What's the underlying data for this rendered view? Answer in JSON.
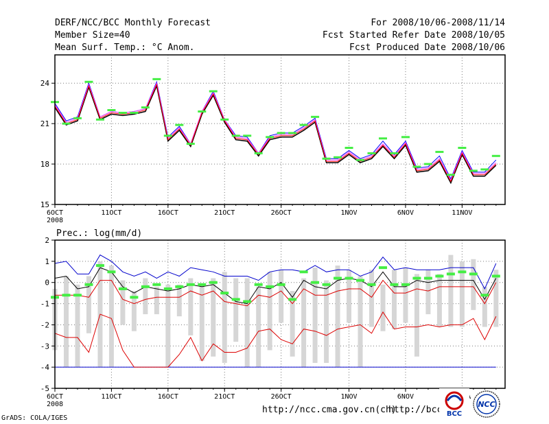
{
  "header": {
    "line1_left": "DERF/NCC/BCC Monthly Forecast",
    "line2_left": "Member Size=40",
    "line3_left": "Mean Surf. Temp.: °C Anom.",
    "line1_right": "For 2008/10/06-2008/11/14",
    "line2_right": "Fcst Started Refer Date 2008/10/05",
    "line3_right": "Fcst Produced Date 2008/10/06"
  },
  "footer": {
    "grads": "GrADS: COLA/IGES",
    "url1": "http://ncc.cma.gov.cn(ch)",
    "url2": "http://bcc.",
    "bcc_logo_text": "BCC",
    "ncc_logo_text": "NCC"
  },
  "colors": {
    "temp_black": "#000000",
    "temp_blue": "#0000ff",
    "temp_red": "#ff0000",
    "temp_pink": "#ff44ff",
    "marker_green": "#44ee44",
    "bar_gray": "#d6d6d6",
    "prec_blue": "#0000cc",
    "prec_red": "#dd0000",
    "grid": "#777777"
  },
  "chart_data": [
    {
      "type": "line",
      "title": "Mean Surf. Temp.: °C Anom.",
      "xlabel": "",
      "ylabel": "",
      "ylim": [
        15,
        26.1
      ],
      "yticks": [
        15,
        18,
        21,
        24
      ],
      "xlim": [
        0,
        39.8
      ],
      "xtick_positions": [
        0,
        5,
        10,
        15,
        20,
        26,
        31,
        36
      ],
      "xtick_labels": [
        "6OCT",
        "11OCT",
        "16OCT",
        "21OCT",
        "26OCT",
        "1NOV",
        "6NOV",
        "11NOV"
      ],
      "xtick_sublabel": "2008",
      "series": [
        {
          "name": "ensemble-mean-black",
          "values": [
            22.2,
            20.9,
            21.2,
            23.7,
            21.3,
            21.7,
            21.6,
            21.7,
            21.9,
            23.8,
            19.7,
            20.5,
            19.3,
            21.7,
            23.1,
            21.1,
            19.8,
            19.7,
            18.6,
            19.8,
            20.0,
            20.0,
            20.5,
            21.1,
            18.1,
            18.1,
            18.7,
            18.1,
            18.4,
            19.3,
            18.4,
            19.4,
            17.4,
            17.5,
            18.2,
            16.6,
            18.7,
            17.1,
            17.1,
            17.9
          ]
        },
        {
          "name": "upper-blue",
          "values": [
            22.5,
            21.2,
            21.5,
            24.0,
            21.5,
            21.9,
            21.8,
            21.9,
            22.1,
            24.1,
            20.0,
            20.8,
            19.5,
            21.9,
            23.4,
            21.3,
            20.1,
            20.0,
            18.8,
            20.1,
            20.3,
            20.3,
            20.8,
            21.4,
            18.4,
            18.4,
            19.0,
            18.4,
            18.7,
            19.7,
            18.7,
            19.7,
            17.7,
            17.8,
            18.6,
            16.9,
            19.0,
            17.4,
            17.4,
            18.3
          ]
        },
        {
          "name": "mid-red",
          "values": [
            22.3,
            21.0,
            21.3,
            23.8,
            21.4,
            21.8,
            21.7,
            21.8,
            22.0,
            23.9,
            19.8,
            20.6,
            19.4,
            21.8,
            23.2,
            21.2,
            19.9,
            19.8,
            18.7,
            19.9,
            20.1,
            20.1,
            20.6,
            21.2,
            18.2,
            18.2,
            18.8,
            18.2,
            18.5,
            19.4,
            18.5,
            19.5,
            17.5,
            17.6,
            18.3,
            16.7,
            18.8,
            17.2,
            17.2,
            18.0
          ]
        },
        {
          "name": "upper-pink",
          "values": [
            22.4,
            21.1,
            21.4,
            23.9,
            21.5,
            21.9,
            21.8,
            21.9,
            22.1,
            24.0,
            19.9,
            20.7,
            19.5,
            21.9,
            23.3,
            21.3,
            20.0,
            19.9,
            18.8,
            20.0,
            20.2,
            20.2,
            20.7,
            21.3,
            18.3,
            18.3,
            18.9,
            18.3,
            18.6,
            19.5,
            18.6,
            19.6,
            17.6,
            17.7,
            18.4,
            16.8,
            18.9,
            17.3,
            17.3,
            18.1
          ]
        }
      ],
      "markers": [
        22.6,
        21.0,
        21.4,
        24.1,
        21.3,
        22.0,
        21.8,
        21.8,
        22.2,
        24.3,
        20.1,
        20.9,
        19.5,
        21.9,
        23.4,
        21.3,
        20.1,
        20.1,
        18.8,
        20.0,
        20.3,
        20.3,
        20.9,
        21.5,
        18.4,
        18.5,
        19.2,
        18.3,
        18.8,
        19.9,
        18.8,
        20.0,
        17.8,
        18.0,
        18.9,
        17.2,
        19.2,
        17.5,
        17.6,
        18.6
      ]
    },
    {
      "type": "line",
      "title": "Prec.: log(mm/d)",
      "xlabel": "",
      "ylabel": "",
      "ylim": [
        -5,
        2
      ],
      "yticks": [
        -5,
        -4,
        -3,
        -2,
        -1,
        0,
        1,
        2
      ],
      "xlim": [
        0,
        39.8
      ],
      "xtick_positions": [
        0,
        5,
        10,
        15,
        20,
        26,
        31,
        36
      ],
      "xtick_labels": [
        "6OCT",
        "11OCT",
        "16OCT",
        "21OCT",
        "26OCT",
        "1NOV",
        "6NOV",
        "11NOV"
      ],
      "xtick_sublabel": "2008",
      "bars_low": [
        -3.2,
        -4.0,
        -4.0,
        -2.4,
        -4.0,
        -4.0,
        -2.0,
        -2.3,
        -1.5,
        -1.5,
        -4.0,
        -1.6,
        -2.5,
        -3.7,
        -3.5,
        -3.8,
        -2.8,
        -4.0,
        -4.0,
        -3.2,
        -1.9,
        -3.5,
        -4.0,
        -3.8,
        -3.8,
        -4.0,
        -1.9,
        -4.0,
        -2.1,
        -2.3,
        -2.2,
        -1.9,
        -3.5,
        -1.5,
        -2.1,
        -2.1,
        -2.1,
        -1.3,
        -2.1,
        -2.1
      ],
      "bars_high": [
        -0.3,
        0.3,
        -0.1,
        0.3,
        1.0,
        0.8,
        0.1,
        -0.4,
        0.2,
        -0.2,
        -0.1,
        -0.1,
        0.2,
        -0.1,
        0.2,
        0.5,
        0.2,
        0.2,
        -0.2,
        0.5,
        0.6,
        -0.4,
        0.2,
        0.7,
        0.1,
        0.8,
        0.6,
        0.3,
        0.6,
        -0.1,
        0.6,
        0.7,
        0.4,
        0.6,
        0.4,
        1.3,
        1.0,
        1.1,
        -0.2,
        0.6
      ],
      "markers": [
        -0.7,
        -0.6,
        -0.6,
        -0.1,
        0.8,
        0.5,
        -0.3,
        -0.7,
        -0.2,
        -0.1,
        -0.3,
        -0.2,
        -0.1,
        -0.1,
        0.0,
        -0.5,
        -0.8,
        -0.9,
        -0.1,
        -0.2,
        -0.1,
        -0.8,
        0.5,
        0.0,
        -0.1,
        0.2,
        0.2,
        0.1,
        -0.1,
        0.7,
        -0.1,
        -0.1,
        0.2,
        0.2,
        0.3,
        0.4,
        0.5,
        0.4,
        -0.6,
        0.3
      ],
      "series": [
        {
          "name": "upper-blue",
          "values": [
            0.9,
            1.0,
            0.4,
            0.4,
            1.3,
            1.0,
            0.5,
            0.3,
            0.5,
            0.2,
            0.5,
            0.3,
            0.7,
            0.6,
            0.5,
            0.3,
            0.3,
            0.3,
            0.1,
            0.5,
            0.6,
            0.6,
            0.5,
            0.8,
            0.5,
            0.6,
            0.6,
            0.3,
            0.5,
            1.2,
            0.6,
            0.7,
            0.6,
            0.6,
            0.6,
            0.7,
            0.7,
            0.7,
            -0.3,
            0.9
          ]
        },
        {
          "name": "mean-black",
          "values": [
            0.2,
            0.3,
            -0.3,
            -0.2,
            0.7,
            0.5,
            -0.2,
            -0.5,
            -0.2,
            -0.3,
            -0.4,
            -0.3,
            -0.1,
            -0.2,
            -0.1,
            -0.5,
            -0.9,
            -1.0,
            -0.2,
            -0.3,
            0.0,
            -0.7,
            0.1,
            -0.2,
            -0.3,
            0.1,
            0.2,
            0.1,
            -0.2,
            0.5,
            -0.2,
            -0.2,
            0.1,
            0.0,
            0.1,
            0.1,
            0.1,
            0.1,
            -0.8,
            0.2
          ]
        },
        {
          "name": "lower-red",
          "values": [
            -0.6,
            -0.6,
            -0.6,
            -0.7,
            0.1,
            0.1,
            -0.8,
            -1.0,
            -0.8,
            -0.7,
            -0.7,
            -0.7,
            -0.4,
            -0.6,
            -0.4,
            -0.9,
            -1.0,
            -1.1,
            -0.6,
            -0.7,
            -0.4,
            -1.0,
            -0.3,
            -0.6,
            -0.6,
            -0.4,
            -0.3,
            -0.3,
            -0.7,
            0.1,
            -0.5,
            -0.5,
            -0.3,
            -0.4,
            -0.2,
            -0.2,
            -0.2,
            -0.2,
            -1.0,
            0.0
          ]
        },
        {
          "name": "min-red",
          "values": [
            -2.4,
            -2.6,
            -2.6,
            -3.3,
            -1.5,
            -1.7,
            -3.2,
            -4.0,
            -4.0,
            -4.0,
            -4.0,
            -3.4,
            -2.6,
            -3.7,
            -2.9,
            -3.3,
            -3.3,
            -3.1,
            -2.3,
            -2.2,
            -2.7,
            -2.9,
            -2.2,
            -2.3,
            -2.5,
            -2.2,
            -2.1,
            -2.0,
            -2.4,
            -1.4,
            -2.2,
            -2.1,
            -2.1,
            -2.0,
            -2.1,
            -2.0,
            -2.0,
            -1.7,
            -2.7,
            -1.6
          ]
        },
        {
          "name": "floor-blue",
          "values": [
            -4.0,
            -4.0,
            -4.0,
            -4.0,
            -4.0,
            -4.0,
            -4.0,
            -4.0,
            -4.0,
            -4.0,
            -4.0,
            -4.0,
            -4.0,
            -4.0,
            -4.0,
            -4.0,
            -4.0,
            -4.0,
            -4.0,
            -4.0,
            -4.0,
            -4.0,
            -4.0,
            -4.0,
            -4.0,
            -4.0,
            -4.0,
            -4.0,
            -4.0,
            -4.0,
            -4.0,
            -4.0,
            -4.0,
            -4.0,
            -4.0,
            -4.0,
            -4.0,
            -4.0,
            -4.0,
            -4.0
          ]
        }
      ]
    }
  ]
}
